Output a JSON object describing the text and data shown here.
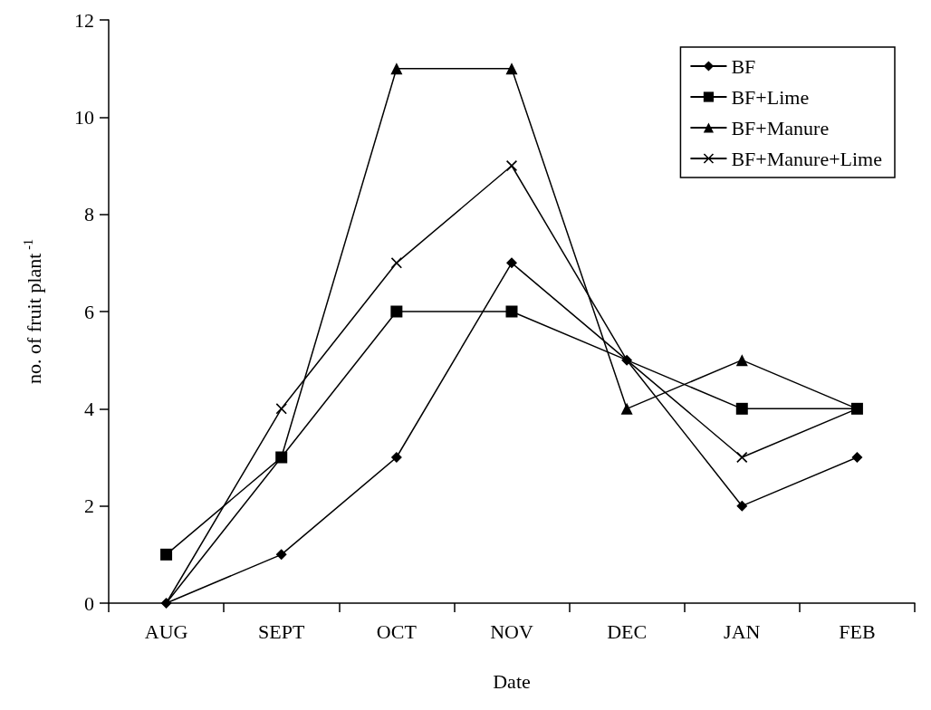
{
  "chart_data": {
    "type": "line",
    "xlabel": "Date",
    "ylabel": "no. of fruit plant$^{-1}$",
    "categories": [
      "AUG",
      "SEPT",
      "OCT",
      "NOV",
      "DEC",
      "JAN",
      "FEB"
    ],
    "series": [
      {
        "name": "BF",
        "color": "#000000",
        "marker": "diamond",
        "values": [
          0,
          1,
          3,
          7,
          5,
          2,
          3
        ]
      },
      {
        "name": "BF+Lime",
        "color": "#000000",
        "marker": "square",
        "values": [
          1,
          3,
          6,
          6,
          5,
          4,
          4
        ]
      },
      {
        "name": "BF+Manure",
        "color": "#000000",
        "marker": "triangle",
        "values": [
          0,
          3,
          11,
          11,
          4,
          5,
          4
        ]
      },
      {
        "name": "BF+Manure+Lime",
        "color": "#000000",
        "marker": "cross",
        "values": [
          0,
          4,
          7,
          9,
          5,
          3,
          4
        ]
      }
    ],
    "ylim": [
      0,
      12
    ],
    "yticks": [
      0,
      2,
      4,
      6,
      8,
      10,
      12
    ],
    "grid": false,
    "legend": "top right",
    "line_style": "solid"
  }
}
